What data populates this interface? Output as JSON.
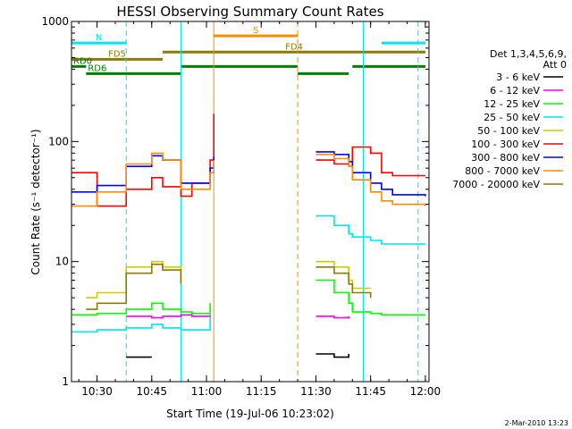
{
  "chart_data": {
    "type": "line",
    "title": "HESSI Observing Summary Count Rates",
    "xlabel": "Start Time (19-Jul-06 10:23:02)",
    "ylabel": "Count Rate (s⁻¹ detector⁻¹)",
    "y_scale": "log",
    "xlim": [
      "10:23",
      "12:01"
    ],
    "ylim": [
      1,
      1000
    ],
    "x_ticks": [
      "10:30",
      "10:45",
      "11:00",
      "11:15",
      "11:30",
      "11:45",
      "12:00"
    ],
    "y_ticks": [
      "1",
      "10",
      "100",
      "1000"
    ],
    "legend_header": [
      "Det 1,3,4,5,6,9,",
      "Att 0"
    ],
    "stamp": "2-Mar-2010 13:23",
    "data_gap": [
      "11:02",
      "11:28"
    ],
    "flag_bars": [
      {
        "label": "S",
        "color": "#ff8c00",
        "segments": [
          [
            "11:02",
            "11:25"
          ]
        ]
      },
      {
        "label": "N",
        "color": "#00e5ee",
        "segments": [
          [
            "10:23",
            "10:38"
          ],
          [
            "11:48",
            "12:00"
          ]
        ]
      },
      {
        "label": "FD4",
        "color": "#8b7b00",
        "segments": [
          [
            "10:48",
            "12:00"
          ]
        ]
      },
      {
        "label": "FD5",
        "color": "#8b7b00",
        "segments": [
          [
            "10:23",
            "10:48"
          ]
        ]
      },
      {
        "label": "RD0",
        "color": "#008000",
        "segments": [
          [
            "10:23",
            "10:27"
          ],
          [
            "10:53",
            "11:25"
          ],
          [
            "11:40",
            "12:00"
          ]
        ]
      },
      {
        "label": "RD6",
        "color": "#008000",
        "segments": [
          [
            "10:27",
            "10:53"
          ],
          [
            "11:25",
            "11:39"
          ]
        ]
      }
    ],
    "markers": [
      {
        "t": "10:23",
        "color": "#00e5ee",
        "style": "solid"
      },
      {
        "t": "10:38",
        "color": "#00e5ee",
        "style": "dashed"
      },
      {
        "t": "10:53",
        "color": "#00e5ee",
        "style": "solid"
      },
      {
        "t": "11:02",
        "color": "#ff8c00",
        "style": "solid"
      },
      {
        "t": "11:25",
        "color": "#ff8c00",
        "style": "dashed"
      },
      {
        "t": "11:43",
        "color": "#00e5ee",
        "style": "solid"
      },
      {
        "t": "11:58",
        "color": "#00e5ee",
        "style": "dashed"
      }
    ],
    "x": [
      "10:23",
      "10:27",
      "10:30",
      "10:38",
      "10:45",
      "10:48",
      "10:53",
      "10:56",
      "11:01",
      "11:02",
      "11:28",
      "11:30",
      "11:35",
      "11:39",
      "11:40",
      "11:45",
      "11:48",
      "11:51",
      "12:00"
    ],
    "series": [
      {
        "name": "3 - 6 keV",
        "color": "#000000",
        "values": [
          null,
          null,
          null,
          1.6,
          1.6,
          null,
          null,
          null,
          null,
          null,
          null,
          1.7,
          1.6,
          1.7,
          null,
          null,
          null,
          null,
          null
        ]
      },
      {
        "name": "6 - 12 keV",
        "color": "#ff00ff",
        "values": [
          null,
          null,
          null,
          3.5,
          3.4,
          3.5,
          3.6,
          3.5,
          3.6,
          null,
          null,
          3.5,
          3.4,
          3.5,
          null,
          null,
          null,
          null,
          null
        ]
      },
      {
        "name": "12 - 25 keV",
        "color": "#00ff00",
        "values": [
          3.6,
          3.6,
          3.7,
          4.0,
          4.5,
          4.0,
          3.8,
          3.7,
          4.5,
          null,
          null,
          7.0,
          5.5,
          4.5,
          3.8,
          3.7,
          3.6,
          3.6,
          3.6
        ]
      },
      {
        "name": "25 - 50 keV",
        "color": "#00e5ee",
        "values": [
          2.6,
          2.6,
          2.7,
          2.8,
          3.0,
          2.8,
          2.7,
          2.7,
          3.5,
          null,
          null,
          24,
          20,
          17,
          16,
          15,
          14,
          14,
          14
        ]
      },
      {
        "name": "50 - 100 keV",
        "color": "#cccc00",
        "values": [
          null,
          5.0,
          5.5,
          9.0,
          10.0,
          9.0,
          7.0,
          null,
          null,
          null,
          null,
          10,
          9,
          7,
          6,
          6,
          null,
          null,
          null
        ]
      },
      {
        "name": "100 - 300 keV",
        "color": "#ff0000",
        "values": [
          55,
          55,
          29,
          40,
          50,
          42,
          35,
          45,
          70,
          170,
          null,
          70,
          65,
          62,
          90,
          80,
          55,
          52,
          52
        ]
      },
      {
        "name": "300 - 800 keV",
        "color": "#0000ff",
        "values": [
          38,
          38,
          43,
          62,
          76,
          70,
          45,
          45,
          60,
          75,
          null,
          82,
          78,
          68,
          55,
          45,
          40,
          36,
          35
        ]
      },
      {
        "name": "800 - 7000 keV",
        "color": "#ff8c00",
        "values": [
          29,
          29,
          38,
          65,
          80,
          70,
          40,
          40,
          55,
          70,
          null,
          78,
          72,
          62,
          48,
          38,
          32,
          30,
          29
        ]
      },
      {
        "name": "7000 - 20000 keV",
        "color": "#8b7b00",
        "values": [
          null,
          4.0,
          4.5,
          8.0,
          9.5,
          8.5,
          6.5,
          null,
          null,
          null,
          null,
          9.0,
          8.0,
          6.5,
          5.5,
          5.0,
          null,
          null,
          null
        ]
      }
    ]
  }
}
